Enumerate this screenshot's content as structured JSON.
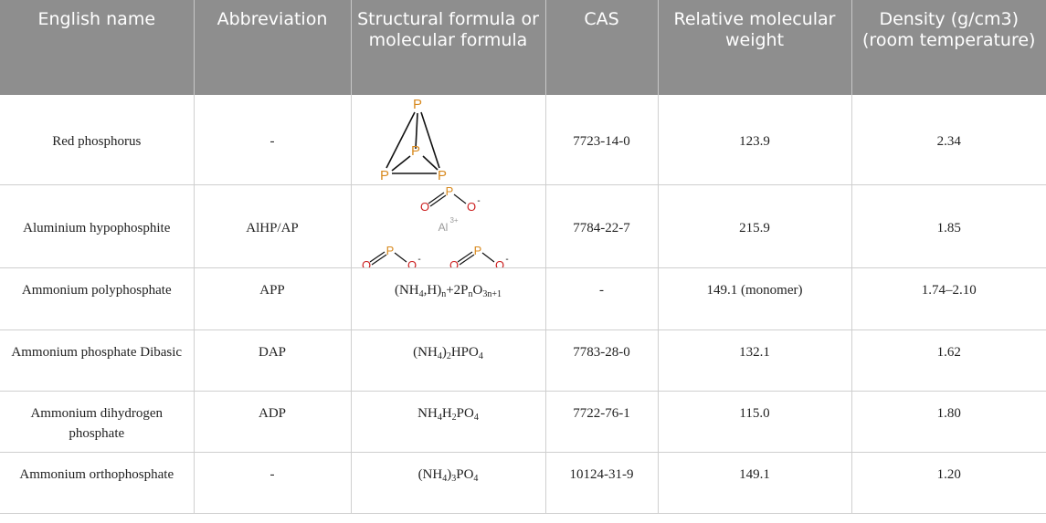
{
  "headers": [
    "English name",
    "Abbreviation",
    "Structural formula or molecular formula",
    "CAS",
    "Relative molecular weight",
    "Density (g/cm3) (room temperature)"
  ],
  "colors": {
    "header_bg": "#8e8e8e",
    "phosphorus": "#d88a20",
    "oxygen": "#cc2222",
    "aluminium": "#9a9a9a"
  },
  "rows": [
    {
      "name": "Red phosphorus",
      "abbr": "-",
      "structure": {
        "kind": "tetrahedral-p4-diagram",
        "atom_labels": [
          "P",
          "P",
          "P",
          "P"
        ]
      },
      "cas": "7723-14-0",
      "mw": "123.9",
      "density": "2.34"
    },
    {
      "name": "Aluminium hypophosphite",
      "abbr": "AlHP/AP",
      "structure": {
        "kind": "al-hypophosphite-diagram",
        "p": "P",
        "o": "O",
        "charge": "-",
        "al": "Al",
        "al_charge": "3+"
      },
      "cas": "7784-22-7",
      "mw": "215.9",
      "density": "1.85"
    },
    {
      "name": "Ammonium polyphosphate",
      "abbr": "APP",
      "formula": {
        "a": "(NH",
        "a_sub": "4",
        "b": ",H)",
        "b_sub": "n",
        "c": "+2P",
        "c_sub": "n",
        "d": "O",
        "d_sub": "3n+1"
      },
      "cas": "-",
      "mw": "149.1 (monomer)",
      "density": "1.74–2.10"
    },
    {
      "name": "Ammonium phosphate Dibasic",
      "abbr": "DAP",
      "formula": {
        "a": "(NH",
        "a_sub": "4",
        "b": ")",
        "b_sub": "2",
        "c": "HPO",
        "c_sub": "4"
      },
      "cas": "7783-28-0",
      "mw": "132.1",
      "density": "1.62"
    },
    {
      "name": "Ammonium dihydrogen phosphate",
      "abbr": "ADP",
      "formula": {
        "a": "NH",
        "a_sub": "4",
        "b": "H",
        "b_sub": "2",
        "c": "PO",
        "c_sub": "4"
      },
      "cas": "7722-76-1",
      "mw": "115.0",
      "density": "1.80"
    },
    {
      "name": "Ammonium orthophosphate",
      "abbr": "-",
      "formula": {
        "a": "(NH",
        "a_sub": "4",
        "b": ")",
        "b_sub": "3",
        "c": "PO",
        "c_sub": "4"
      },
      "cas": "10124-31-9",
      "mw": "149.1",
      "density": "1.20"
    }
  ]
}
